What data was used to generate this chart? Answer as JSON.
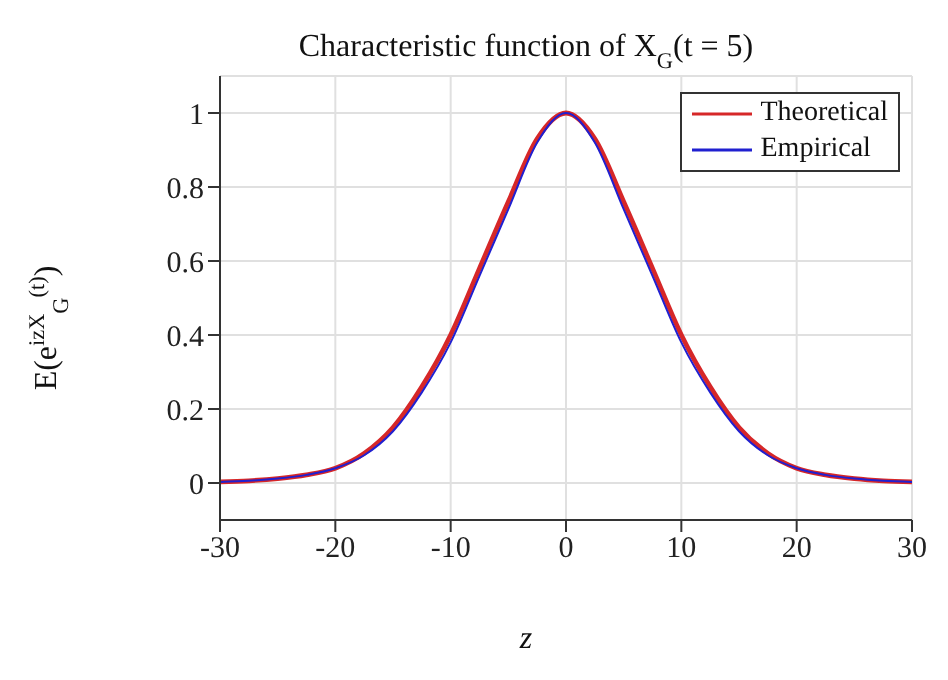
{
  "chart_data": {
    "type": "line",
    "title": "Characteristic function of X$_{G}$(t = 5)",
    "xlabel": "z",
    "ylabel": "E(e$^{izX}$$_{G}$$^{(t)}$)",
    "x": [
      -30,
      -27.5,
      -25,
      -22.5,
      -20,
      -17.5,
      -15,
      -12.5,
      -10,
      -7.5,
      -5,
      -2.5,
      0,
      2.5,
      5,
      7.5,
      10,
      12.5,
      15,
      17.5,
      20,
      22.5,
      25,
      27.5,
      30
    ],
    "series": [
      {
        "name": "Theoretical",
        "color": "#d62728",
        "values": [
          0.003,
          0.006,
          0.012,
          0.022,
          0.04,
          0.08,
          0.15,
          0.26,
          0.4,
          0.58,
          0.76,
          0.93,
          1,
          0.93,
          0.76,
          0.58,
          0.4,
          0.26,
          0.15,
          0.08,
          0.04,
          0.022,
          0.012,
          0.006,
          0.003
        ]
      },
      {
        "name": "Empirical",
        "color": "#2020d0",
        "values": [
          0.003,
          0.006,
          0.012,
          0.022,
          0.04,
          0.075,
          0.14,
          0.245,
          0.38,
          0.56,
          0.74,
          0.92,
          1,
          0.92,
          0.74,
          0.56,
          0.38,
          0.245,
          0.14,
          0.075,
          0.04,
          0.022,
          0.012,
          0.006,
          0.003
        ]
      }
    ],
    "xlim": [
      -30,
      30
    ],
    "xticks": [
      -30,
      -20,
      -10,
      0,
      10,
      20,
      30
    ],
    "ylim": [
      -0.1,
      1.1
    ],
    "yticks": [
      0,
      0.2,
      0.4,
      0.6,
      0.8,
      1
    ],
    "grid": true,
    "legend": "top right",
    "line_style": "solid",
    "marker": "none"
  }
}
